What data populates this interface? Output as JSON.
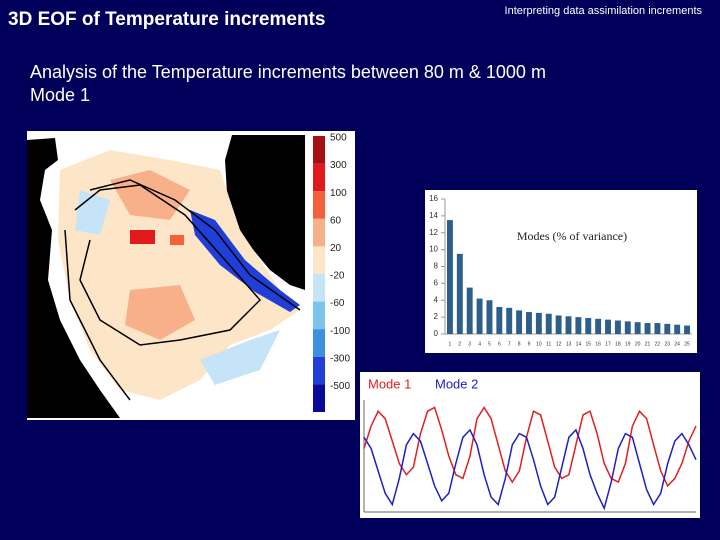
{
  "header": {
    "title": "3D EOF of Temperature increments",
    "subtitle": "Interpreting data assimilation increments"
  },
  "body": {
    "analysis": "Analysis of the Temperature increments between  80 m & 1000 m",
    "mode": "Mode 1"
  },
  "map": {
    "colorbar": [
      {
        "label": "500",
        "color": "#a50f15"
      },
      {
        "label": "300",
        "color": "#e31a1c"
      },
      {
        "label": "100",
        "color": "#f4603c"
      },
      {
        "label": "60",
        "color": "#f7b08a"
      },
      {
        "label": "20",
        "color": "#fde6c8"
      },
      {
        "label": "-20",
        "color": "#c6e4f7"
      },
      {
        "label": "-60",
        "color": "#7cc3ee"
      },
      {
        "label": "-100",
        "color": "#3d8fe0"
      },
      {
        "label": "-300",
        "color": "#1f3fd8"
      },
      {
        "label": "-500",
        "color": "#0a0a9a"
      }
    ]
  },
  "chart_data": [
    {
      "type": "bar",
      "title": "Modes (% of variance)",
      "color": "#2e5f8a",
      "categories": [
        "1",
        "2",
        "3",
        "4",
        "5",
        "6",
        "7",
        "8",
        "9",
        "10",
        "11",
        "12",
        "13",
        "14",
        "15",
        "16",
        "17",
        "18",
        "19",
        "20",
        "21",
        "22",
        "23",
        "24",
        "25"
      ],
      "values": [
        13.5,
        9.5,
        5.5,
        4.2,
        4.0,
        3.2,
        3.1,
        2.8,
        2.6,
        2.5,
        2.4,
        2.2,
        2.1,
        2.0,
        1.9,
        1.8,
        1.7,
        1.6,
        1.5,
        1.4,
        1.3,
        1.3,
        1.2,
        1.1,
        1.0
      ],
      "ylim": [
        0,
        16
      ],
      "yticks": [
        0,
        2,
        4,
        6,
        8,
        10,
        12,
        14,
        16
      ]
    },
    {
      "type": "line",
      "ylim": [
        -0.15,
        0.15
      ],
      "series": [
        {
          "name": "Mode 1",
          "color": "#e02020",
          "values": [
            0.02,
            0.08,
            0.12,
            0.1,
            0.04,
            -0.02,
            -0.05,
            -0.03,
            0.06,
            0.12,
            0.13,
            0.07,
            0.0,
            -0.05,
            -0.06,
            0.0,
            0.1,
            0.13,
            0.1,
            0.03,
            -0.04,
            -0.07,
            -0.04,
            0.05,
            0.12,
            0.11,
            0.04,
            -0.03,
            -0.06,
            -0.05,
            0.03,
            0.11,
            0.12,
            0.06,
            -0.02,
            -0.06,
            -0.07,
            -0.02,
            0.08,
            0.12,
            0.1,
            0.03,
            -0.04,
            -0.08,
            -0.06,
            -0.02,
            0.04,
            0.08
          ]
        },
        {
          "name": "Mode 2",
          "color": "#2020c0",
          "values": [
            0.05,
            0.02,
            -0.04,
            -0.1,
            -0.13,
            -0.06,
            0.03,
            0.06,
            0.04,
            -0.02,
            -0.08,
            -0.12,
            -0.1,
            -0.02,
            0.05,
            0.07,
            0.03,
            -0.05,
            -0.11,
            -0.13,
            -0.06,
            0.03,
            0.06,
            0.05,
            -0.01,
            -0.08,
            -0.13,
            -0.11,
            -0.03,
            0.05,
            0.07,
            0.02,
            -0.05,
            -0.1,
            -0.14,
            -0.07,
            0.02,
            0.06,
            0.05,
            -0.02,
            -0.09,
            -0.13,
            -0.1,
            -0.02,
            0.04,
            0.06,
            0.03,
            -0.01
          ]
        }
      ]
    }
  ]
}
